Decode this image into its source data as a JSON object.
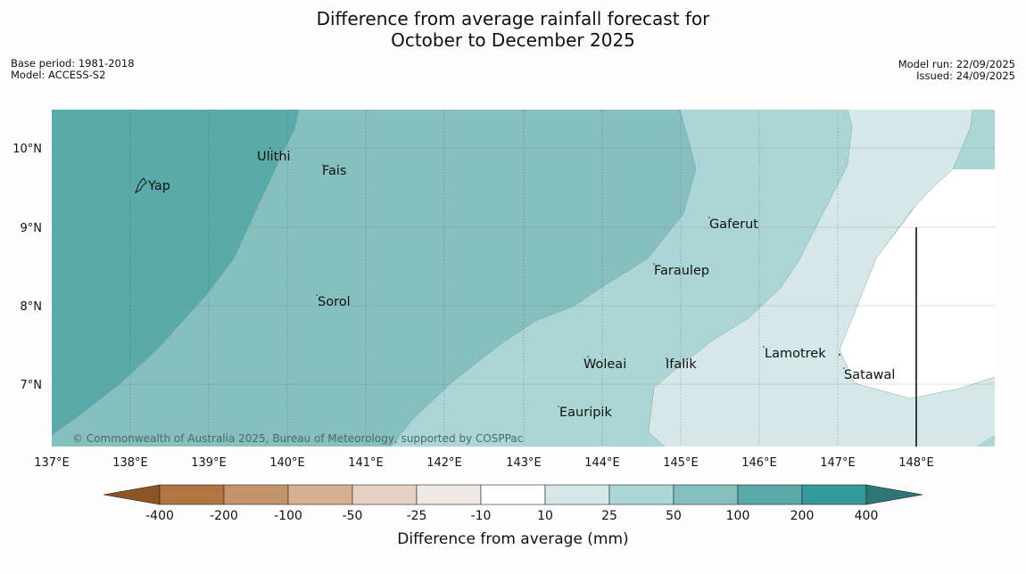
{
  "title": {
    "line1": "Difference from average rainfall forecast for",
    "line2": "October to December 2025"
  },
  "meta_left": {
    "base_period": "Base period: 1981-2018",
    "model": "Model: ACCESS-S2"
  },
  "meta_right": {
    "model_run": "Model run: 22/09/2025",
    "issued": "Issued: 24/09/2025"
  },
  "map": {
    "lon_ticks": [
      "137°E",
      "138°E",
      "139°E",
      "140°E",
      "141°E",
      "142°E",
      "143°E",
      "144°E",
      "145°E",
      "146°E",
      "147°E",
      "148°E"
    ],
    "lat_ticks": [
      "10°N",
      "9°N",
      "8°N",
      "7°N"
    ],
    "places": [
      {
        "name": "Yap"
      },
      {
        "name": "Ulithi"
      },
      {
        "name": "Fais"
      },
      {
        "name": "Gaferut"
      },
      {
        "name": "Faraulep"
      },
      {
        "name": "Sorol"
      },
      {
        "name": "Woleai"
      },
      {
        "name": "Ifalik"
      },
      {
        "name": "Lamotrek"
      },
      {
        "name": "Satawal"
      },
      {
        "name": "Eauripik"
      }
    ],
    "attribution": "© Commonwealth of Australia 2025, Bureau of Meteorology, supported by COSPPac"
  },
  "legend": {
    "tick_labels": [
      "-400",
      "-200",
      "-100",
      "-50",
      "-25",
      "-10",
      "10",
      "25",
      "50",
      "100",
      "200",
      "400"
    ],
    "label": "Difference from average (mm)",
    "colors": {
      "lt_-400": "#8c5523",
      "-400_-200": "#b07540",
      "-200_-100": "#c4946a",
      "-100_-50": "#d5b192",
      "-50_-25": "#e4d1c1",
      "-25_-10": "#efe9e6",
      "-10_10": "#ffffff",
      "10_25": "#d5e8e7",
      "25_50": "#acd6d5",
      "50_100": "#85bfbe",
      "100_200": "#5aaaaa",
      "200_400": "#34999a",
      "gt_400": "#2e7675"
    }
  }
}
